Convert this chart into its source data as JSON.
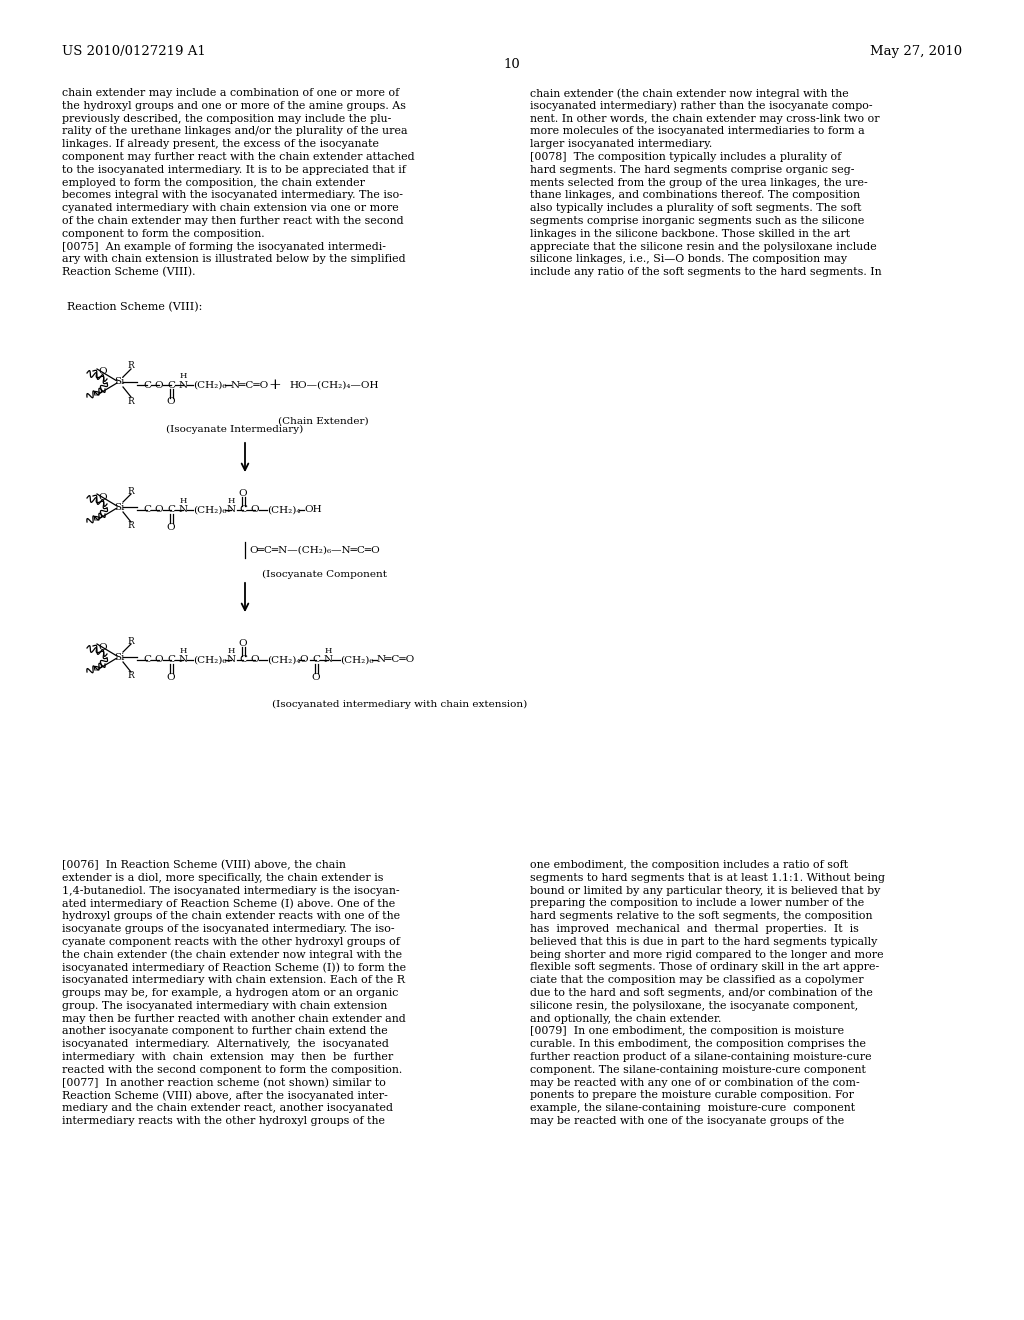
{
  "bg_color": "#ffffff",
  "header_left": "US 2010/0127219 A1",
  "header_right": "May 27, 2010",
  "page_num": "10",
  "left_col_texts": [
    "chain extender may include a combination of one or more of",
    "the hydroxyl groups and one or more of the amine groups. As",
    "previously described, the composition may include the plu-",
    "rality of the urethane linkages and/or the plurality of the urea",
    "linkages. If already present, the excess of the isocyanate",
    "component may further react with the chain extender attached",
    "to the isocyanated intermediary. It is to be appreciated that if",
    "employed to form the composition, the chain extender",
    "becomes integral with the isocyanated intermediary. The iso-",
    "cyanated intermediary with chain extension via one or more",
    "of the chain extender may then further react with the second",
    "component to form the composition.",
    "[0075]  An example of forming the isocyanated intermedi-",
    "ary with chain extension is illustrated below by the simplified",
    "Reaction Scheme (VIII)."
  ],
  "right_col_texts": [
    "chain extender (the chain extender now integral with the",
    "isocyanated intermediary) rather than the isocyanate compo-",
    "nent. In other words, the chain extender may cross-link two or",
    "more molecules of the isocyanated intermediaries to form a",
    "larger isocyanated intermediary.",
    "[0078]  The composition typically includes a plurality of",
    "hard segments. The hard segments comprise organic seg-",
    "ments selected from the group of the urea linkages, the ure-",
    "thane linkages, and combinations thereof. The composition",
    "also typically includes a plurality of soft segments. The soft",
    "segments comprise inorganic segments such as the silicone",
    "linkages in the silicone backbone. Those skilled in the art",
    "appreciate that the silicone resin and the polysiloxane include",
    "silicone linkages, i.e., Si—O bonds. The composition may",
    "include any ratio of the soft segments to the hard segments. In"
  ],
  "bottom_left_texts": [
    "[0076]  In Reaction Scheme (VIII) above, the chain",
    "extender is a diol, more specifically, the chain extender is",
    "1,4-butanediol. The isocyanated intermediary is the isocyan-",
    "ated intermediary of Reaction Scheme (I) above. One of the",
    "hydroxyl groups of the chain extender reacts with one of the",
    "isocyanate groups of the isocyanated intermediary. The iso-",
    "cyanate component reacts with the other hydroxyl groups of",
    "the chain extender (the chain extender now integral with the",
    "isocyanated intermediary of Reaction Scheme (I)) to form the",
    "isocyanated intermediary with chain extension. Each of the R",
    "groups may be, for example, a hydrogen atom or an organic",
    "group. The isocyanated intermediary with chain extension",
    "may then be further reacted with another chain extender and",
    "another isocyanate component to further chain extend the",
    "isocyanated  intermediary.  Alternatively,  the  isocyanated",
    "intermediary  with  chain  extension  may  then  be  further",
    "reacted with the second component to form the composition.",
    "[0077]  In another reaction scheme (not shown) similar to",
    "Reaction Scheme (VIII) above, after the isocyanated inter-",
    "mediary and the chain extender react, another isocyanated",
    "intermediary reacts with the other hydroxyl groups of the"
  ],
  "bottom_right_texts": [
    "one embodiment, the composition includes a ratio of soft",
    "segments to hard segments that is at least 1.1:1. Without being",
    "bound or limited by any particular theory, it is believed that by",
    "preparing the composition to include a lower number of the",
    "hard segments relative to the soft segments, the composition",
    "has  improved  mechanical  and  thermal  properties.  It  is",
    "believed that this is due in part to the hard segments typically",
    "being shorter and more rigid compared to the longer and more",
    "flexible soft segments. Those of ordinary skill in the art appre-",
    "ciate that the composition may be classified as a copolymer",
    "due to the hard and soft segments, and/or combination of the",
    "silicone resin, the polysiloxane, the isocyanate component,",
    "and optionally, the chain extender.",
    "[0079]  In one embodiment, the composition is moisture",
    "curable. In this embodiment, the composition comprises the",
    "further reaction product of a silane-containing moisture-cure",
    "component. The silane-containing moisture-cure component",
    "may be reacted with any one of or combination of the com-",
    "ponents to prepare the moisture curable composition. For",
    "example, the silane-containing  moisture-cure  component",
    "may be reacted with one of the isocyanate groups of the"
  ],
  "reaction_scheme_label": "Reaction Scheme (VIII):",
  "isocyanate_intermediary_label": "(Isocyanate Intermediary)",
  "chain_extender_label": "(Chain Extender)",
  "isocyanate_component_label": "(Isocyanate Component",
  "isocyanated_chain_ext_label": "(Isocyanated intermediary with chain extension)"
}
